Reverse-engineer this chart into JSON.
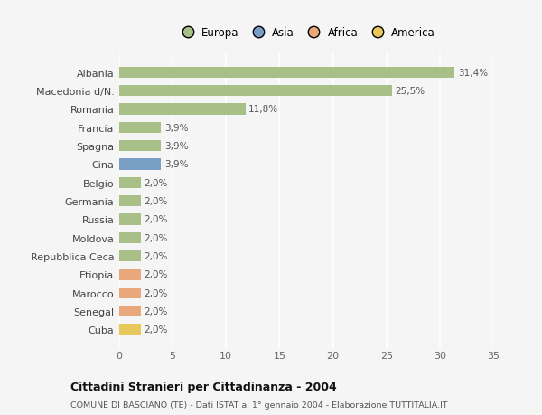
{
  "categories": [
    "Albania",
    "Macedonia d/N.",
    "Romania",
    "Francia",
    "Spagna",
    "Cina",
    "Belgio",
    "Germania",
    "Russia",
    "Moldova",
    "Repubblica Ceca",
    "Etiopia",
    "Marocco",
    "Senegal",
    "Cuba"
  ],
  "values": [
    31.4,
    25.5,
    11.8,
    3.9,
    3.9,
    3.9,
    2.0,
    2.0,
    2.0,
    2.0,
    2.0,
    2.0,
    2.0,
    2.0,
    2.0
  ],
  "labels": [
    "31,4%",
    "25,5%",
    "11,8%",
    "3,9%",
    "3,9%",
    "3,9%",
    "2,0%",
    "2,0%",
    "2,0%",
    "2,0%",
    "2,0%",
    "2,0%",
    "2,0%",
    "2,0%",
    "2,0%"
  ],
  "colors": [
    "#a8bf88",
    "#a8bf88",
    "#a8bf88",
    "#a8bf88",
    "#a8bf88",
    "#7a9fc4",
    "#a8bf88",
    "#a8bf88",
    "#a8bf88",
    "#a8bf88",
    "#a8bf88",
    "#e8a87c",
    "#e8a87c",
    "#e8a87c",
    "#e8c85a"
  ],
  "legend_labels": [
    "Europa",
    "Asia",
    "Africa",
    "America"
  ],
  "legend_colors": [
    "#a8bf88",
    "#7a9fc4",
    "#e8a87c",
    "#e8c85a"
  ],
  "xlim": [
    0,
    35
  ],
  "xticks": [
    0,
    5,
    10,
    15,
    20,
    25,
    30,
    35
  ],
  "title": "Cittadini Stranieri per Cittadinanza - 2004",
  "subtitle": "COMUNE DI BASCIANO (TE) - Dati ISTAT al 1° gennaio 2004 - Elaborazione TUTTITALIA.IT",
  "background_color": "#f5f5f5",
  "grid_color": "#ffffff",
  "bar_height": 0.6
}
